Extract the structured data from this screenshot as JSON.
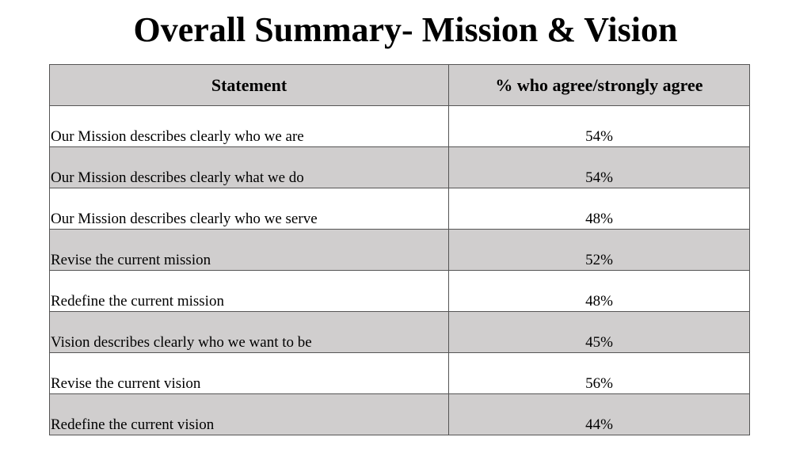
{
  "title": "Overall Summary- Mission & Vision",
  "table": {
    "headers": [
      "Statement",
      "% who agree/strongly agree"
    ],
    "rows": [
      {
        "statement": "Our Mission describes clearly who we are",
        "percent": "54%"
      },
      {
        "statement": "Our Mission describes clearly what we do",
        "percent": "54%"
      },
      {
        "statement": "Our Mission describes clearly who we serve",
        "percent": "48%"
      },
      {
        "statement": "Revise the current mission",
        "percent": "52%"
      },
      {
        "statement": "Redefine the current mission",
        "percent": "48%"
      },
      {
        "statement": "Vision describes clearly who we want to be",
        "percent": "45%"
      },
      {
        "statement": "Revise the current vision",
        "percent": "56%"
      },
      {
        "statement": "Redefine the current vision",
        "percent": "44%"
      }
    ]
  },
  "colors": {
    "shaded_row": "#d0cece",
    "plain_row": "#ffffff",
    "border": "#555555",
    "text": "#000000"
  }
}
